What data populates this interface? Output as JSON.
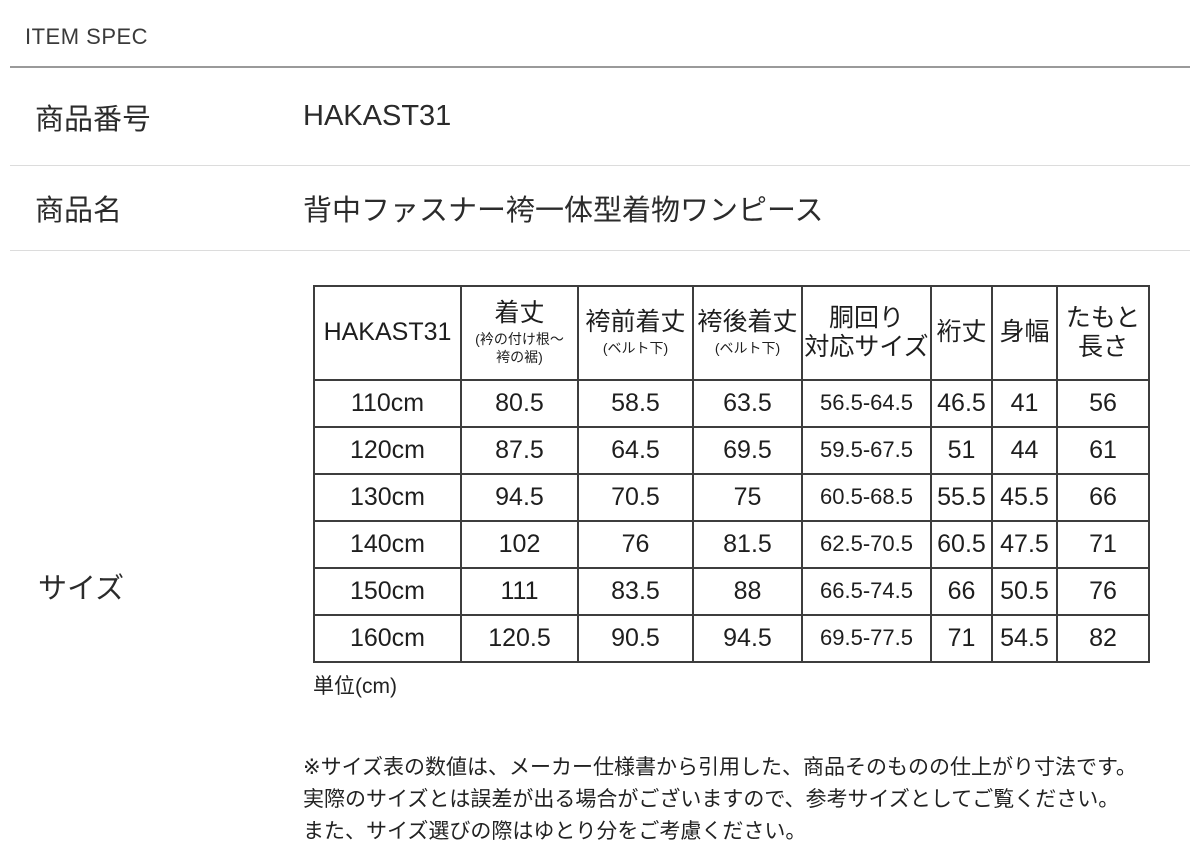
{
  "header": {
    "title": "ITEM SPEC"
  },
  "spec_rows": {
    "product_number_label": "商品番号",
    "product_number_value": "HAKAST31",
    "product_name_label": "商品名",
    "product_name_value": "背中ファスナー袴一体型着物ワンピース",
    "size_label": "サイズ"
  },
  "size_table": {
    "corner_label": "HAKAST31",
    "columns": [
      {
        "label": "着丈",
        "sub": "(衿の付け根～\n袴の裾)"
      },
      {
        "label": "袴前着丈",
        "sub": "(ベルト下)"
      },
      {
        "label": "袴後着丈",
        "sub": "(ベルト下)"
      },
      {
        "label": "胴回り\n対応サイズ",
        "sub": ""
      },
      {
        "label": "裄丈",
        "sub": ""
      },
      {
        "label": "身幅",
        "sub": ""
      },
      {
        "label": "たもと\n長さ",
        "sub": ""
      }
    ],
    "rows": [
      {
        "size": "110cm",
        "values": [
          "80.5",
          "58.5",
          "63.5",
          "56.5-64.5",
          "46.5",
          "41",
          "56"
        ]
      },
      {
        "size": "120cm",
        "values": [
          "87.5",
          "64.5",
          "69.5",
          "59.5-67.5",
          "51",
          "44",
          "61"
        ]
      },
      {
        "size": "130cm",
        "values": [
          "94.5",
          "70.5",
          "75",
          "60.5-68.5",
          "55.5",
          "45.5",
          "66"
        ]
      },
      {
        "size": "140cm",
        "values": [
          "102",
          "76",
          "81.5",
          "62.5-70.5",
          "60.5",
          "47.5",
          "71"
        ]
      },
      {
        "size": "150cm",
        "values": [
          "111",
          "83.5",
          "88",
          "66.5-74.5",
          "66",
          "50.5",
          "76"
        ]
      },
      {
        "size": "160cm",
        "values": [
          "120.5",
          "90.5",
          "94.5",
          "69.5-77.5",
          "71",
          "54.5",
          "82"
        ]
      }
    ],
    "unit_note": "単位(cm)"
  },
  "notes": [
    "※サイズ表の数値は、メーカー仕様書から引用した、商品そのものの仕上がり寸法です。",
    "実際のサイズとは誤差が出る場合がございますので、参考サイズとしてご覧ください。",
    "また、サイズ選びの際はゆとり分をご考慮ください。"
  ]
}
